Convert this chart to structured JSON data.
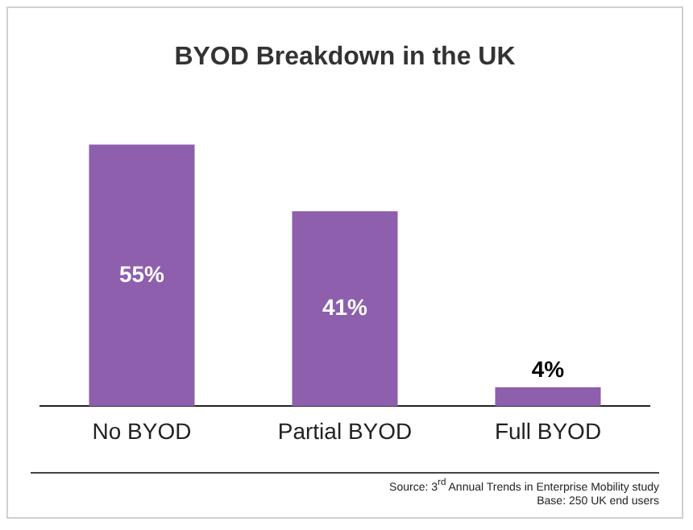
{
  "chart_data": {
    "type": "bar",
    "title": "BYOD Breakdown in the UK",
    "categories": [
      "No BYOD",
      "Partial BYOD",
      "Full BYOD"
    ],
    "values": [
      55,
      41,
      4
    ],
    "color": "#8e5fac",
    "value_labels": [
      "55%",
      "41%",
      "4%"
    ],
    "grid": false,
    "legend": false,
    "annotations": [
      "Source: 3$^{rd}$ Annual Trends in Enterprise Mobility study",
      "Base: 250 UK end users"
    ]
  }
}
